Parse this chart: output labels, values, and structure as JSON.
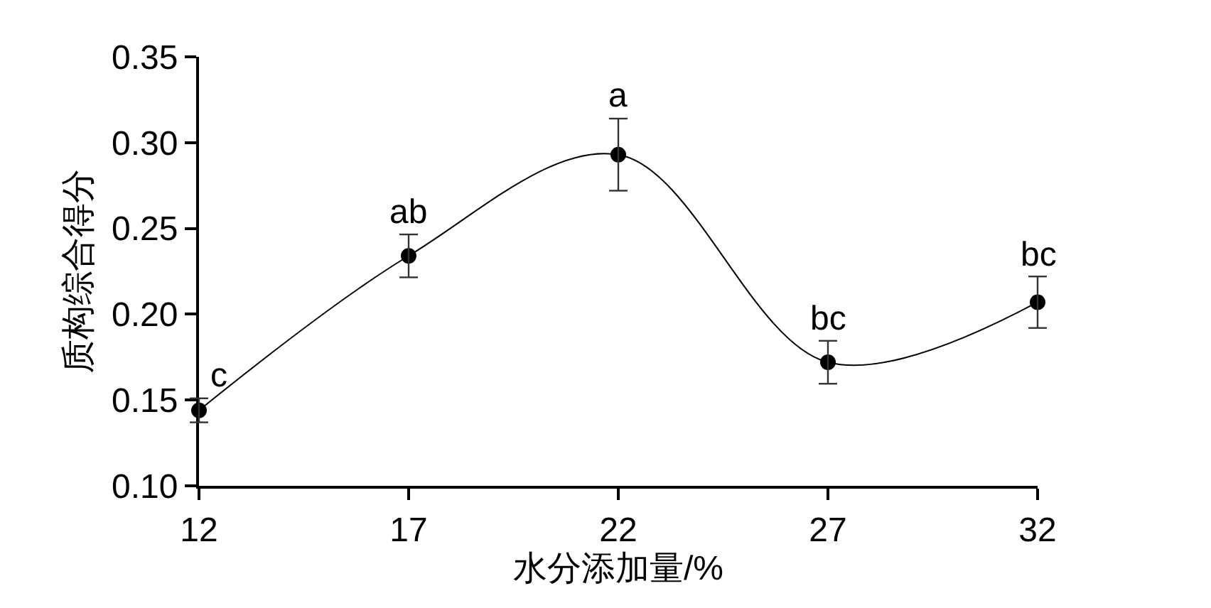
{
  "chart_data": {
    "type": "line",
    "xlabel": "水分添加量/%",
    "ylabel": "质构综合得分",
    "x": [
      12,
      17,
      22,
      27,
      32
    ],
    "series": [
      {
        "color": "#000000",
        "values": [
          0.144,
          0.234,
          0.293,
          0.172,
          0.207
        ],
        "errors": [
          0.007,
          0.0125,
          0.021,
          0.0125,
          0.015
        ]
      }
    ],
    "xlim": [
      12,
      32
    ],
    "xticks": [
      12,
      17,
      22,
      27,
      32
    ],
    "ylim": [
      0.1,
      0.35
    ],
    "yticks": [
      {
        "value": 0.1,
        "label": "0.10"
      },
      {
        "value": 0.15,
        "label": "0.15"
      },
      {
        "value": 0.2,
        "label": "0.20"
      },
      {
        "value": 0.25,
        "label": "0.25"
      },
      {
        "value": 0.3,
        "label": "0.30"
      },
      {
        "value": 0.35,
        "label": "0.35"
      }
    ],
    "annotations": [
      {
        "text": "c",
        "x": 12,
        "y": 0.144
      },
      {
        "text": "ab",
        "x": 17,
        "y": 0.234
      },
      {
        "text": "a",
        "x": 22,
        "y": 0.293
      },
      {
        "text": "bc",
        "x": 27,
        "y": 0.172
      },
      {
        "text": "bc",
        "x": 32,
        "y": 0.207
      }
    ],
    "marker": "circle",
    "line_style": "solid"
  }
}
